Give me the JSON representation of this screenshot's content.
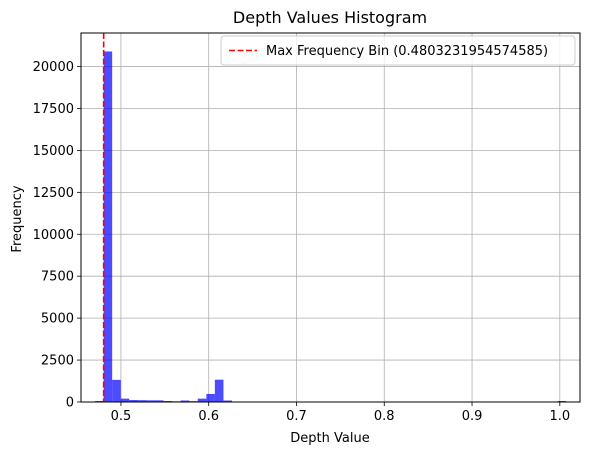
{
  "chart_data": {
    "type": "bar",
    "title": "Depth Values Histogram",
    "xlabel": "Depth Value",
    "ylabel": "Frequency",
    "xlim": [
      0.4545,
      1.023
    ],
    "ylim": [
      0,
      22000
    ],
    "xticks": [
      0.5,
      0.6,
      0.7,
      0.8,
      0.9,
      1.0
    ],
    "xtick_labels": [
      "0.5",
      "0.6",
      "0.7",
      "0.8",
      "0.9",
      "1.0"
    ],
    "yticks": [
      0,
      2500,
      5000,
      7500,
      10000,
      12500,
      15000,
      17500,
      20000
    ],
    "ytick_labels": [
      "0",
      "2500",
      "5000",
      "7500",
      "10000",
      "12500",
      "15000",
      "17500",
      "20000"
    ],
    "grid": true,
    "bar_color": "#0000ff",
    "bar_alpha": 0.7,
    "bins": [
      {
        "x0": 0.4706,
        "x1": 0.4803,
        "count": 60
      },
      {
        "x0": 0.4803,
        "x1": 0.49,
        "count": 20900
      },
      {
        "x0": 0.49,
        "x1": 0.4998,
        "count": 1320
      },
      {
        "x0": 0.4998,
        "x1": 0.5095,
        "count": 200
      },
      {
        "x0": 0.5095,
        "x1": 0.5193,
        "count": 120
      },
      {
        "x0": 0.5193,
        "x1": 0.529,
        "count": 110
      },
      {
        "x0": 0.529,
        "x1": 0.5388,
        "count": 100
      },
      {
        "x0": 0.5388,
        "x1": 0.5485,
        "count": 100
      },
      {
        "x0": 0.5485,
        "x1": 0.5583,
        "count": 60
      },
      {
        "x0": 0.5583,
        "x1": 0.568,
        "count": 40
      },
      {
        "x0": 0.568,
        "x1": 0.5778,
        "count": 90
      },
      {
        "x0": 0.5778,
        "x1": 0.5875,
        "count": 50
      },
      {
        "x0": 0.5875,
        "x1": 0.5973,
        "count": 200
      },
      {
        "x0": 0.5973,
        "x1": 0.607,
        "count": 480
      },
      {
        "x0": 0.607,
        "x1": 0.6168,
        "count": 1330
      },
      {
        "x0": 0.6168,
        "x1": 0.6265,
        "count": 90
      },
      {
        "x0": 0.6265,
        "x1": 0.6363,
        "count": 30
      },
      {
        "x0": 0.6363,
        "x1": 0.646,
        "count": 10
      },
      {
        "x0": 0.646,
        "x1": 0.6558,
        "count": 8
      },
      {
        "x0": 0.6558,
        "x1": 0.6655,
        "count": 6
      },
      {
        "x0": 0.6655,
        "x1": 0.6753,
        "count": 5
      },
      {
        "x0": 0.6753,
        "x1": 0.685,
        "count": 5
      },
      {
        "x0": 0.685,
        "x1": 0.6948,
        "count": 4
      },
      {
        "x0": 0.6948,
        "x1": 0.7045,
        "count": 3
      },
      {
        "x0": 0.9877,
        "x1": 0.9975,
        "count": 20
      },
      {
        "x0": 0.9975,
        "x1": 1.0072,
        "count": 60
      }
    ],
    "reference_line": {
      "x": 0.4803231954574585,
      "color": "#ff0000",
      "style": "dashed",
      "label": "Max Frequency Bin (0.4803231954574585)"
    },
    "legend": {
      "placement": "top-right"
    }
  }
}
